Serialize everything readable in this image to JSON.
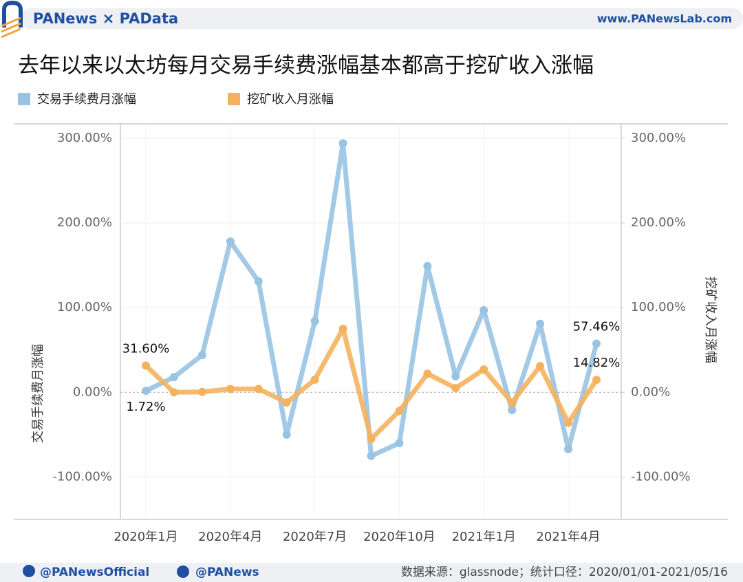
{
  "header": {
    "brand": "PANews × PAData",
    "site": "www.PANewsLab.com"
  },
  "chart_data": {
    "type": "line",
    "title": "去年以来以太坊每月交易手续费涨幅基本都高于挖矿收入涨幅",
    "y_label": "交易手续费月涨幅",
    "y2_label": "挖矿收入月涨幅",
    "categories": [
      "2020年1月",
      null,
      null,
      "2020年4月",
      null,
      null,
      "2020年7月",
      null,
      null,
      "2020年10月",
      null,
      null,
      "2021年1月",
      null,
      null,
      "2021年4月",
      null
    ],
    "series": [
      {
        "name": "交易手续费月涨幅",
        "color": "#98c3e2",
        "axis": "y",
        "values": [
          1.72,
          18,
          44,
          178,
          131,
          -50,
          84,
          294,
          -75,
          -60,
          149,
          19,
          97,
          -21,
          81,
          -67,
          57.46
        ],
        "value_labels": [
          "1.72%",
          null,
          null,
          null,
          null,
          null,
          null,
          null,
          null,
          null,
          null,
          null,
          null,
          null,
          null,
          null,
          "57.46%"
        ]
      },
      {
        "name": "挖矿收入月涨幅",
        "color": "#f5b25e",
        "axis": "y2",
        "values": [
          31.6,
          0,
          0.5,
          4,
          4,
          -12,
          15,
          75,
          -55,
          -22,
          22,
          5,
          27,
          -12,
          31,
          -36,
          14.82
        ],
        "value_labels": [
          "31.60%",
          null,
          null,
          null,
          null,
          null,
          null,
          null,
          null,
          null,
          null,
          null,
          null,
          null,
          null,
          null,
          "14.82%"
        ]
      }
    ],
    "ylim": [
      -150,
      317
    ],
    "y2lim": [
      -150,
      317
    ],
    "yticks": [
      {
        "value": -100,
        "label": "-100.00%"
      },
      {
        "value": 0,
        "label": "0.00%"
      },
      {
        "value": 100,
        "label": "100.00%"
      },
      {
        "value": 200,
        "label": "200.00%"
      },
      {
        "value": 300,
        "label": "300.00%"
      }
    ],
    "y2ticks": [
      {
        "value": -100,
        "label": "-100.00%"
      },
      {
        "value": 0,
        "label": "0.00%"
      },
      {
        "value": 100,
        "label": "100.00%"
      },
      {
        "value": 200,
        "label": "200.00%"
      },
      {
        "value": 300,
        "label": "300.00%"
      }
    ],
    "grid": true
  },
  "footer": {
    "twitter": "@PANewsOfficial",
    "weibo": "@PANews",
    "source": "数据来源：glassnode；统计口径：2020/01/01-2021/05/16"
  }
}
